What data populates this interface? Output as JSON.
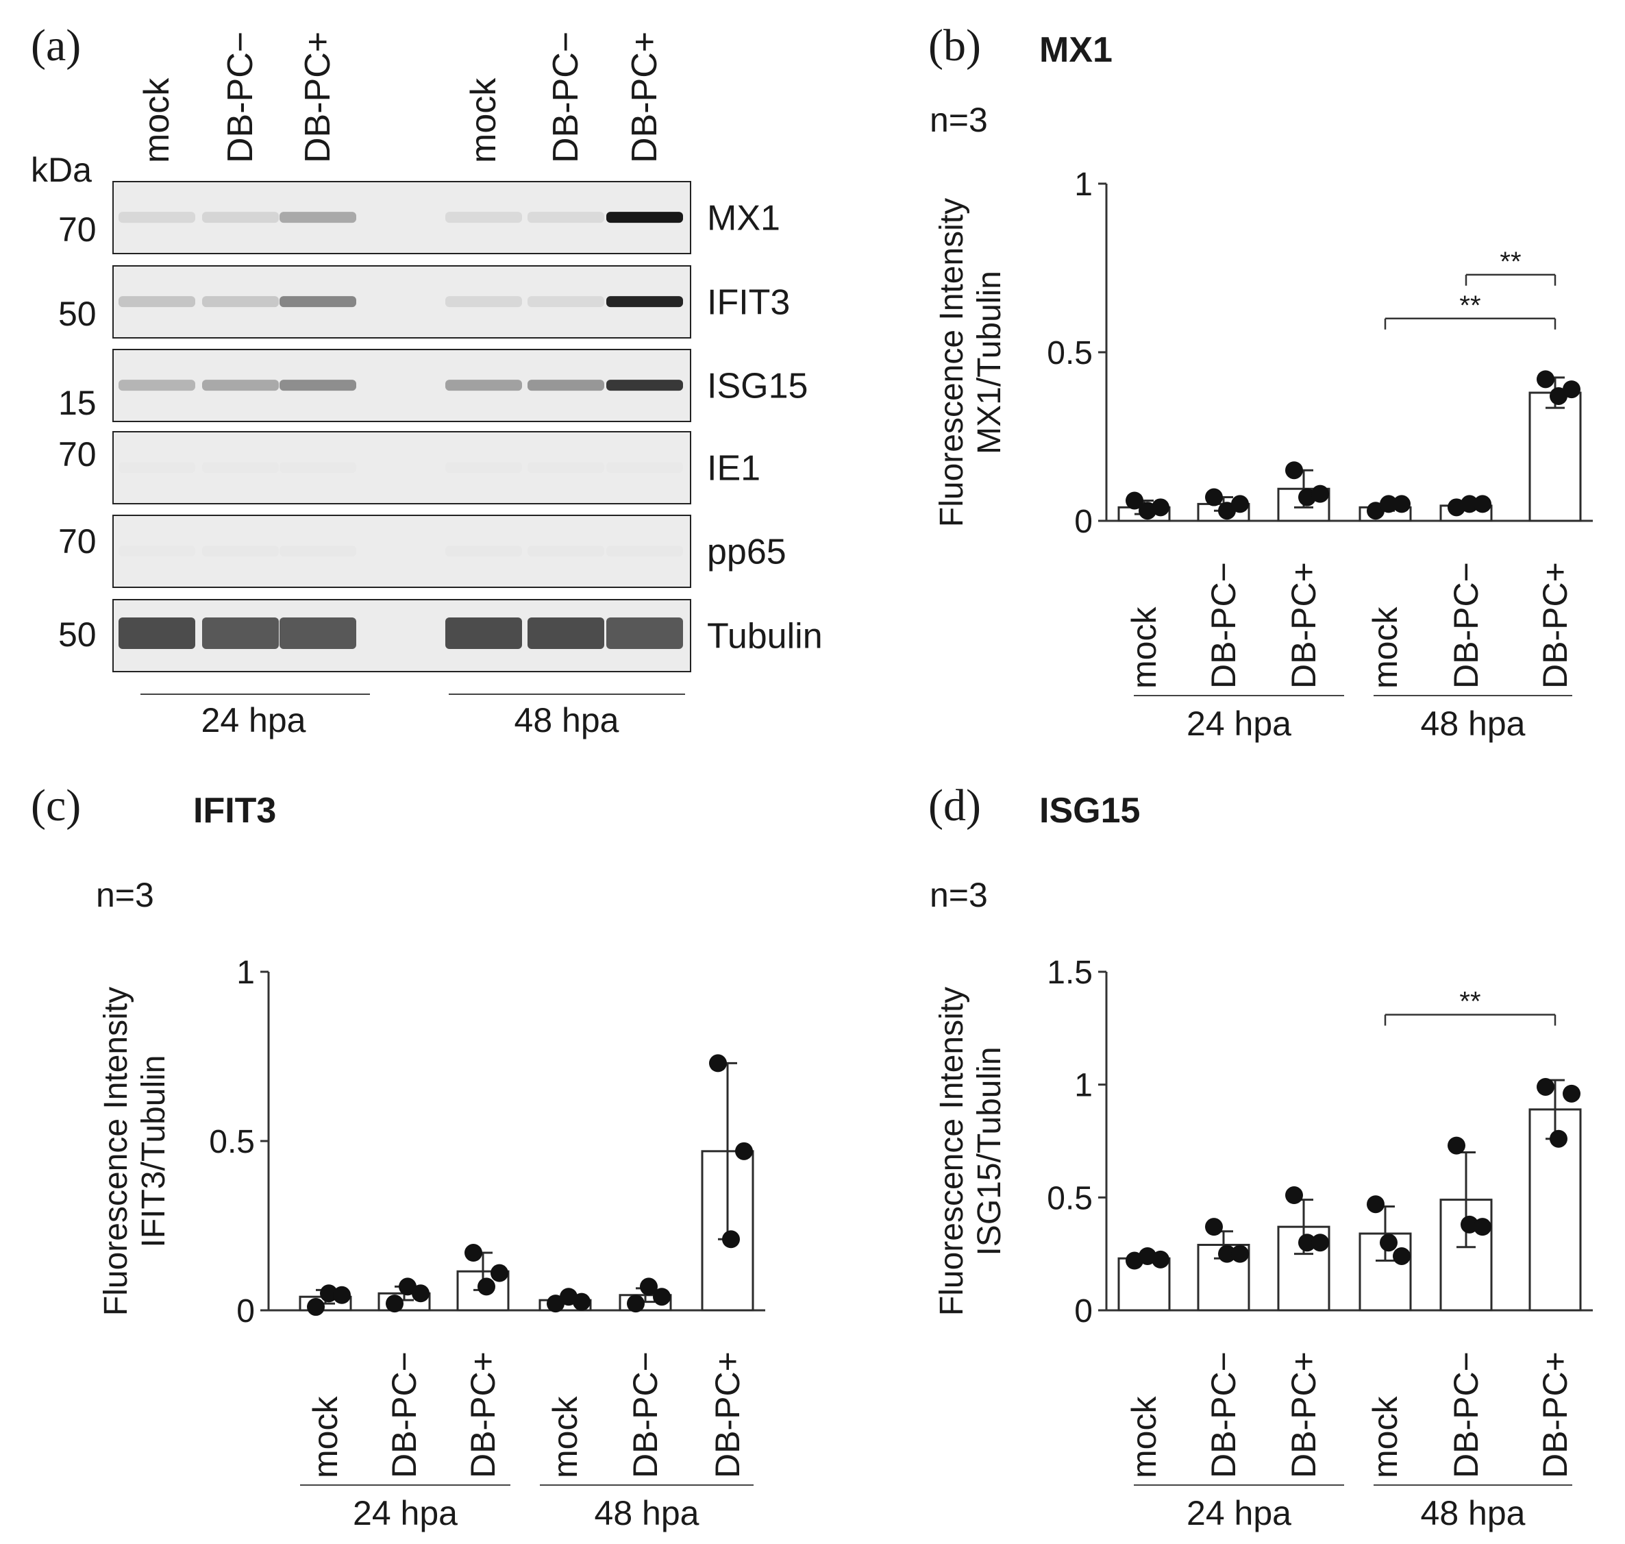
{
  "figure": {
    "panels": {
      "a": {
        "letter": "(a)"
      },
      "b": {
        "letter": "(b)",
        "title": "MX1",
        "n_label": "n=3"
      },
      "c": {
        "letter": "(c)",
        "title": "IFIT3",
        "n_label": "n=3"
      },
      "d": {
        "letter": "(d)",
        "title": "ISG15",
        "n_label": "n=3"
      }
    }
  },
  "blot": {
    "kda_label": "kDa",
    "lanes": [
      "mock",
      "DB-PC−",
      "DB-PC+",
      "mock",
      "DB-PC−",
      "DB-PC+"
    ],
    "groups": [
      "24 hpa",
      "48 hpa"
    ],
    "rows": [
      {
        "protein": "MX1",
        "kda": "70",
        "intensity": [
          0.3,
          0.32,
          0.55,
          0.28,
          0.28,
          0.98
        ]
      },
      {
        "protein": "IFIT3",
        "kda": "50",
        "intensity": [
          0.42,
          0.4,
          0.68,
          0.3,
          0.28,
          0.95
        ]
      },
      {
        "protein": "ISG15",
        "kda": "15",
        "intensity": [
          0.5,
          0.55,
          0.65,
          0.58,
          0.62,
          0.9
        ]
      },
      {
        "protein": "IE1",
        "kda": "70",
        "intensity": [
          0.05,
          0.05,
          0.05,
          0.05,
          0.05,
          0.05
        ]
      },
      {
        "protein": "pp65",
        "kda": "70",
        "intensity": [
          0.06,
          0.1,
          0.1,
          0.08,
          0.1,
          0.1
        ]
      },
      {
        "protein": "Tubulin",
        "kda": "50",
        "intensity": [
          0.85,
          0.82,
          0.82,
          0.85,
          0.85,
          0.82
        ]
      }
    ]
  },
  "chart_data": [
    {
      "type": "bar",
      "title": "MX1",
      "ylabel": [
        "Fluorescence Intensity",
        "MX1/Tubulin"
      ],
      "categories": [
        "mock",
        "DB-PC−",
        "DB-PC+",
        "mock",
        "DB-PC−",
        "DB-PC+"
      ],
      "groups": [
        "24 hpa",
        "48 hpa"
      ],
      "yticks": [
        "0",
        "0.5",
        "1"
      ],
      "ylim": [
        0,
        1
      ],
      "values": [
        0.04,
        0.05,
        0.095,
        0.04,
        0.045,
        0.38
      ],
      "errors": [
        0.02,
        0.02,
        0.055,
        0.01,
        0.01,
        0.045
      ],
      "points": [
        [
          0.06,
          0.03,
          0.04
        ],
        [
          0.07,
          0.03,
          0.05
        ],
        [
          0.15,
          0.07,
          0.08
        ],
        [
          0.03,
          0.05,
          0.05
        ],
        [
          0.04,
          0.05,
          0.05
        ],
        [
          0.42,
          0.37,
          0.39
        ]
      ],
      "significance": [
        {
          "from": 3,
          "to": 5,
          "label": "**",
          "y": 0.6
        },
        {
          "from": 4,
          "to": 5,
          "label": "**",
          "y": 0.73
        }
      ]
    },
    {
      "type": "bar",
      "title": "IFIT3",
      "ylabel": [
        "Fluorescence Intensity",
        "IFIT3/Tubulin"
      ],
      "categories": [
        "mock",
        "DB-PC−",
        "DB-PC+",
        "mock",
        "DB-PC−",
        "DB-PC+"
      ],
      "groups": [
        "24 hpa",
        "48 hpa"
      ],
      "yticks": [
        "0",
        "0.5",
        "1"
      ],
      "ylim": [
        0,
        1
      ],
      "values": [
        0.04,
        0.05,
        0.115,
        0.03,
        0.045,
        0.47
      ],
      "errors": [
        0.02,
        0.02,
        0.055,
        0.01,
        0.02,
        0.26
      ],
      "points": [
        [
          0.01,
          0.05,
          0.045
        ],
        [
          0.02,
          0.07,
          0.05
        ],
        [
          0.17,
          0.07,
          0.11
        ],
        [
          0.02,
          0.04,
          0.025
        ],
        [
          0.02,
          0.07,
          0.04
        ],
        [
          0.73,
          0.21,
          0.47
        ]
      ],
      "significance": []
    },
    {
      "type": "bar",
      "title": "ISG15",
      "ylabel": [
        "Fluorescence Intensity",
        "ISG15/Tubulin"
      ],
      "categories": [
        "mock",
        "DB-PC−",
        "DB-PC+",
        "mock",
        "DB-PC−",
        "DB-PC+"
      ],
      "groups": [
        "24 hpa",
        "48 hpa"
      ],
      "yticks": [
        "0",
        "0.5",
        "1",
        "1.5"
      ],
      "ylim": [
        0,
        1.5
      ],
      "values": [
        0.23,
        0.29,
        0.37,
        0.34,
        0.49,
        0.89
      ],
      "errors": [
        0.01,
        0.06,
        0.12,
        0.12,
        0.21,
        0.13
      ],
      "points": [
        [
          0.22,
          0.24,
          0.225
        ],
        [
          0.37,
          0.25,
          0.25
        ],
        [
          0.51,
          0.3,
          0.3
        ],
        [
          0.47,
          0.3,
          0.24
        ],
        [
          0.73,
          0.38,
          0.37
        ],
        [
          0.99,
          0.76,
          0.96
        ]
      ],
      "significance": [
        {
          "from": 3,
          "to": 5,
          "label": "**",
          "y": 1.31
        }
      ]
    }
  ]
}
